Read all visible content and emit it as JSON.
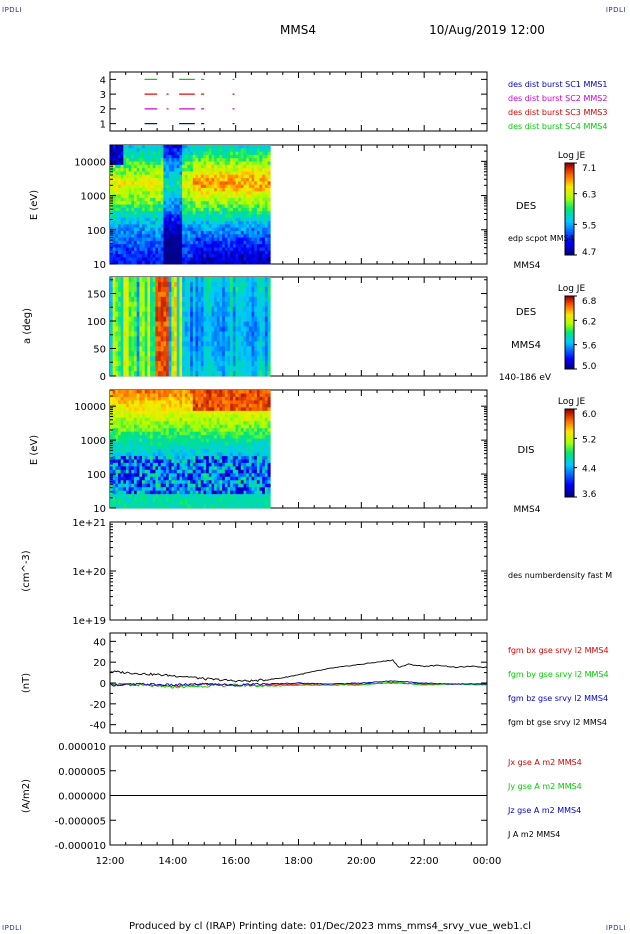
{
  "header": {
    "corner_tl": "IPDLI",
    "corner_tr": "IPDLI",
    "corner_bl": "IPDLI",
    "corner_br": "IPDLI",
    "spacecraft": "MMS4",
    "date_time": "10/Aug/2019 12:00"
  },
  "footer": {
    "text": "Produced by cl (IRAP)   Printing date: 01/Dec/2023   mms_mms4_srvy_vue_web1.cl"
  },
  "colors": {
    "red": "#dd0000",
    "green": "#00cc00",
    "blue": "#0000cc",
    "magenta": "#cc00cc",
    "black": "#000000"
  },
  "chart_data": [
    {
      "type": "line",
      "panel": "burst-intervals",
      "y_ticks": [
        "4",
        "3",
        "2",
        "1"
      ],
      "ylim": [
        0.5,
        4.5
      ],
      "x_ticks": [
        "12:00",
        "14:00",
        "16:00",
        "18:00",
        "20:00",
        "22:00",
        "00:00"
      ],
      "xlim_hours": [
        12,
        24
      ],
      "legend": [
        {
          "label": "des dist burst SC1 MMS1",
          "color": "#0000cc"
        },
        {
          "label": "des dist burst SC2 MMS2",
          "color": "#cc00cc"
        },
        {
          "label": "des dist burst SC3 MMS3",
          "color": "#dd0000"
        },
        {
          "label": "des dist burst SC4 MMS4",
          "color": "#00cc00"
        }
      ],
      "series": [
        {
          "level": 4,
          "color": "#00cc00",
          "intervals": [
            [
              13.1,
              13.5
            ],
            [
              14.2,
              14.7
            ],
            [
              14.9,
              15.0
            ],
            [
              15.9,
              15.95
            ]
          ]
        },
        {
          "level": 3,
          "color": "#dd0000",
          "intervals": [
            [
              13.1,
              13.5
            ],
            [
              13.8,
              13.82
            ],
            [
              14.2,
              14.7
            ],
            [
              14.9,
              15.0
            ],
            [
              15.9,
              15.95
            ]
          ]
        },
        {
          "level": 2,
          "color": "#cc00cc",
          "intervals": [
            [
              13.1,
              13.5
            ],
            [
              13.8,
              13.82
            ],
            [
              14.2,
              14.7
            ],
            [
              14.9,
              15.0
            ],
            [
              15.9,
              15.95
            ]
          ]
        },
        {
          "level": 1,
          "color": "#0000cc",
          "intervals": [
            [
              13.1,
              13.5
            ],
            [
              14.2,
              14.7
            ],
            [
              14.9,
              15.0
            ],
            [
              15.9,
              15.95
            ]
          ]
        }
      ]
    },
    {
      "type": "heatmap",
      "panel": "des-energy",
      "ylabel": "E (eV)",
      "yscale": "log",
      "ylim": [
        10,
        30000
      ],
      "y_ticks": [
        "10000",
        "1000",
        "100",
        "10"
      ],
      "data_xlim_hours": [
        12,
        17.1
      ],
      "label": "DES",
      "note": "edp scpot MMS4",
      "sc_label": "MMS4",
      "colorbar": {
        "title": "Log JE",
        "ticks": [
          "7.1",
          "6.3",
          "5.5",
          "4.7"
        ],
        "range": [
          4.7,
          7.1
        ]
      }
    },
    {
      "type": "heatmap",
      "panel": "des-pitch-angle",
      "ylabel": "a (deg)",
      "ylim": [
        0,
        180
      ],
      "y_ticks": [
        "150",
        "100",
        "50",
        "0"
      ],
      "data_xlim_hours": [
        12,
        17.1
      ],
      "label": "DES",
      "sc_label": "MMS4",
      "energy_range": "140-186 eV",
      "colorbar": {
        "title": "Log JE",
        "ticks": [
          "6.8",
          "6.2",
          "5.6",
          "5.0"
        ],
        "range": [
          5.0,
          6.8
        ]
      }
    },
    {
      "type": "heatmap",
      "panel": "dis-energy",
      "ylabel": "E (eV)",
      "yscale": "log",
      "ylim": [
        10,
        30000
      ],
      "y_ticks": [
        "10000",
        "1000",
        "100",
        "10"
      ],
      "data_xlim_hours": [
        12,
        17.1
      ],
      "label": "DIS",
      "sc_label": "MMS4",
      "colorbar": {
        "title": "Log JE",
        "ticks": [
          "6.0",
          "5.2",
          "4.4",
          "3.6"
        ],
        "range": [
          3.6,
          6.0
        ]
      }
    },
    {
      "type": "line",
      "panel": "density",
      "ylabel": "(cm^-3)",
      "yscale": "log",
      "y_ticks": [
        "1e+21",
        "1e+20",
        "1e+19"
      ],
      "legend": [
        {
          "label": "des numberdensity fast M",
          "color": "#000000"
        }
      ]
    },
    {
      "type": "line",
      "panel": "magnetic-field",
      "ylabel": "(nT)",
      "ylim": [
        -48,
        48
      ],
      "y_ticks": [
        "40",
        "20",
        "0",
        "-20",
        "-40"
      ],
      "legend": [
        {
          "label": "fgm bx gse srvy l2 MMS4",
          "color": "#dd0000"
        },
        {
          "label": "fgm by gse srvy l2 MMS4",
          "color": "#00cc00"
        },
        {
          "label": "fgm bz gse srvy l2 MMS4",
          "color": "#0000cc"
        },
        {
          "label": "fgm bt gse srvy l2 MMS4",
          "color": "#000000"
        }
      ],
      "series": [
        {
          "name": "bt",
          "color": "#000000",
          "x": [
            12,
            12.5,
            13,
            13.5,
            14,
            14.5,
            15,
            15.5,
            16,
            16.5,
            17,
            17.5,
            18,
            18.5,
            19,
            19.5,
            20,
            20.5,
            21,
            21.2,
            21.5,
            22,
            22.5,
            23,
            23.5,
            24
          ],
          "y": [
            11,
            10,
            9,
            8,
            7,
            6,
            4,
            3,
            2,
            2,
            3,
            5,
            8,
            11,
            14,
            16,
            18,
            20,
            22,
            15,
            18,
            16,
            17,
            15,
            16,
            15
          ]
        },
        {
          "name": "bx",
          "color": "#dd0000",
          "x": [
            12,
            13,
            14,
            15,
            16,
            17,
            18,
            19,
            20,
            21,
            22,
            23,
            24
          ],
          "y": [
            -1,
            -2,
            -3,
            -1,
            -2,
            -2,
            -1,
            -1,
            -1,
            0,
            -1,
            -1,
            -1
          ]
        },
        {
          "name": "by",
          "color": "#00cc00",
          "x": [
            12,
            13,
            14,
            15,
            16,
            17,
            18,
            19,
            20,
            21,
            22,
            23,
            24
          ],
          "y": [
            -1,
            -2,
            -4,
            -3,
            -2,
            -3,
            -2,
            -2,
            -2,
            1,
            -2,
            -1,
            -2
          ]
        },
        {
          "name": "bz",
          "color": "#0000cc",
          "x": [
            12,
            13,
            14,
            15,
            16,
            17,
            18,
            19,
            20,
            21,
            22,
            23,
            24
          ],
          "y": [
            -2,
            -1,
            -2,
            -1,
            -2,
            -1,
            0,
            -1,
            0,
            2,
            0,
            -1,
            -1
          ]
        }
      ]
    },
    {
      "type": "line",
      "panel": "current-density",
      "ylabel": "(A/m2)",
      "ylim": [
        -1e-05,
        1e-05
      ],
      "y_ticks": [
        "0.000010",
        "0.000005",
        "0.000000",
        "-0.000005",
        "-0.000010"
      ],
      "legend": [
        {
          "label": "Jx gse A m2 MMS4",
          "color": "#dd0000"
        },
        {
          "label": "Jy gse A m2 MMS4",
          "color": "#00cc00"
        },
        {
          "label": "Jz gse A m2 MMS4",
          "color": "#0000cc"
        },
        {
          "label": "J A m2 MMS4",
          "color": "#000000"
        }
      ],
      "series": [
        {
          "name": "J",
          "color": "#000000",
          "x": [
            12,
            24
          ],
          "y": [
            0,
            0
          ]
        }
      ]
    }
  ]
}
